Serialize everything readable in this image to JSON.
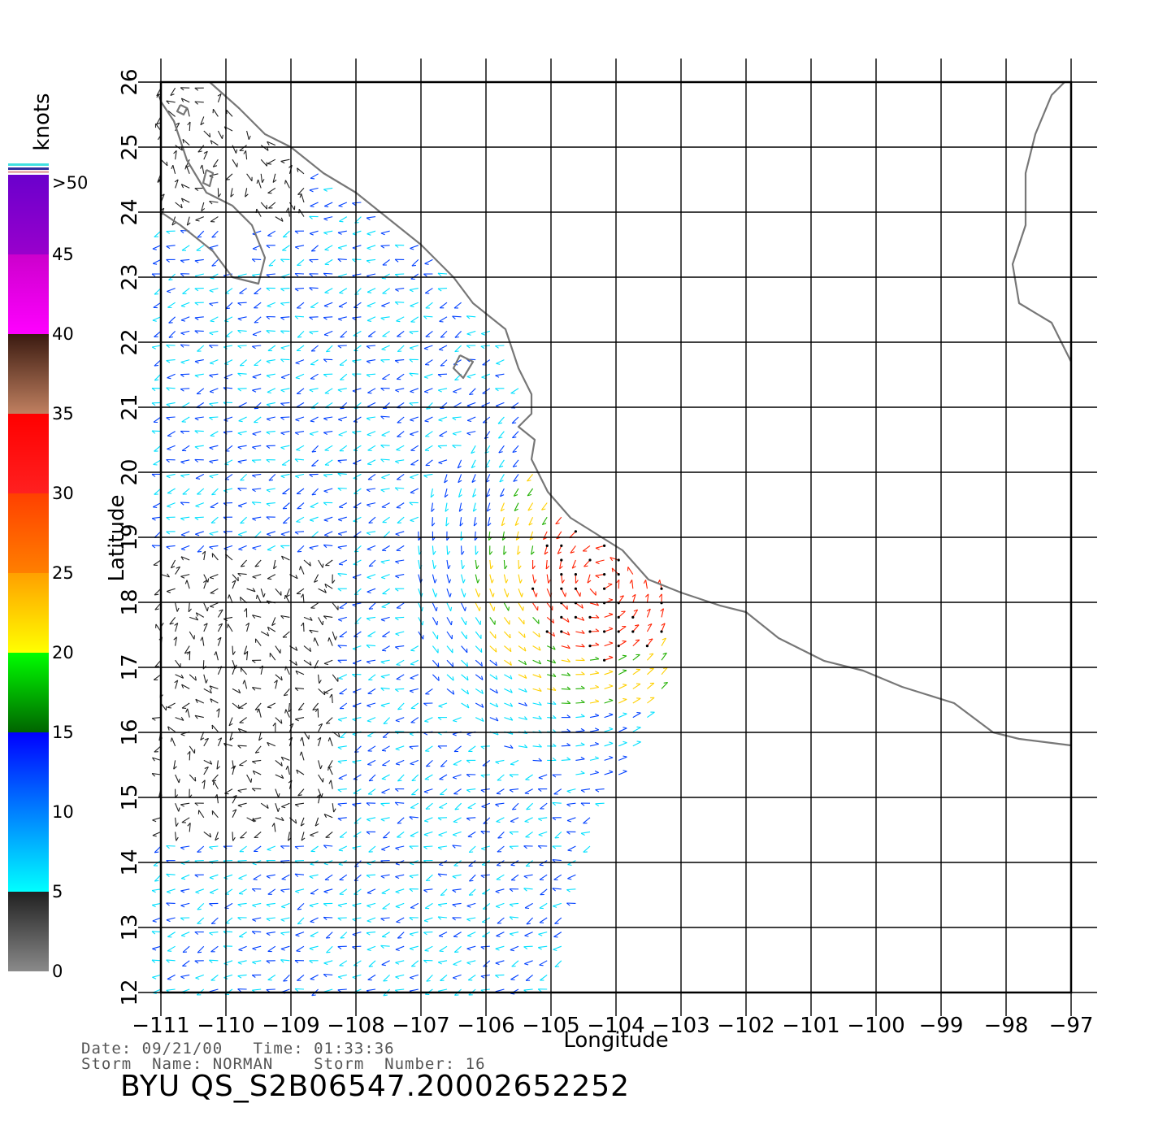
{
  "map": {
    "longitude_label": "Longitude",
    "latitude_label": "Latitude",
    "lon_ticks": [
      "-111",
      "-110",
      "-109",
      "-108",
      "-107",
      "-106",
      "-105",
      "-104",
      "-103",
      "-102",
      "-101",
      "-100",
      "-99",
      "-98",
      "-97"
    ],
    "lat_ticks": [
      "12",
      "13",
      "14",
      "15",
      "16",
      "17",
      "18",
      "19",
      "20",
      "21",
      "22",
      "23",
      "24",
      "25",
      "26"
    ],
    "lon_range": [
      -111,
      -97
    ],
    "lat_range": [
      12,
      26
    ],
    "coastline_color": "#777777",
    "grid_color": "#000000"
  },
  "colorbar": {
    "unit": "knots",
    "tick_labels": [
      "0",
      "5",
      "10",
      "15",
      "20",
      "25",
      "30",
      "35",
      "40",
      "45",
      ">50"
    ],
    "bands": [
      {
        "range": [
          0,
          5
        ],
        "colors": [
          "#8a8a8a",
          "#202020"
        ]
      },
      {
        "range": [
          5,
          10
        ],
        "colors": [
          "#00ffff",
          "#0080ff"
        ]
      },
      {
        "range": [
          10,
          15
        ],
        "colors": [
          "#0080ff",
          "#0000ff"
        ]
      },
      {
        "range": [
          15,
          20
        ],
        "colors": [
          "#006400",
          "#00ff00"
        ]
      },
      {
        "range": [
          20,
          25
        ],
        "colors": [
          "#ffff00",
          "#ffa000"
        ]
      },
      {
        "range": [
          25,
          30
        ],
        "colors": [
          "#ff7f00",
          "#ff4000"
        ]
      },
      {
        "range": [
          30,
          35
        ],
        "colors": [
          "#ff2020",
          "#ff0000"
        ]
      },
      {
        "range": [
          35,
          40
        ],
        "colors": [
          "#c08060",
          "#3a1a10"
        ]
      },
      {
        "range": [
          40,
          45
        ],
        "colors": [
          "#ff00ff",
          "#cc00cc"
        ]
      },
      {
        "range": [
          45,
          50
        ],
        "colors": [
          "#9900cc",
          "#6a00cc"
        ]
      }
    ]
  },
  "wind_colors": {
    "calm": "#202020",
    "light": "#00e0ff",
    "moderate": "#0040ff",
    "fresh": "#20b000",
    "strong": "#ffd000",
    "gale": "#ff2000"
  },
  "info": {
    "line1": "Date: 09/21/00   Time: 01:33:36",
    "line2": "Storm  Name: NORMAN    Storm  Number: 16",
    "title": "BYU  QS_S2B06547.20002652252"
  }
}
